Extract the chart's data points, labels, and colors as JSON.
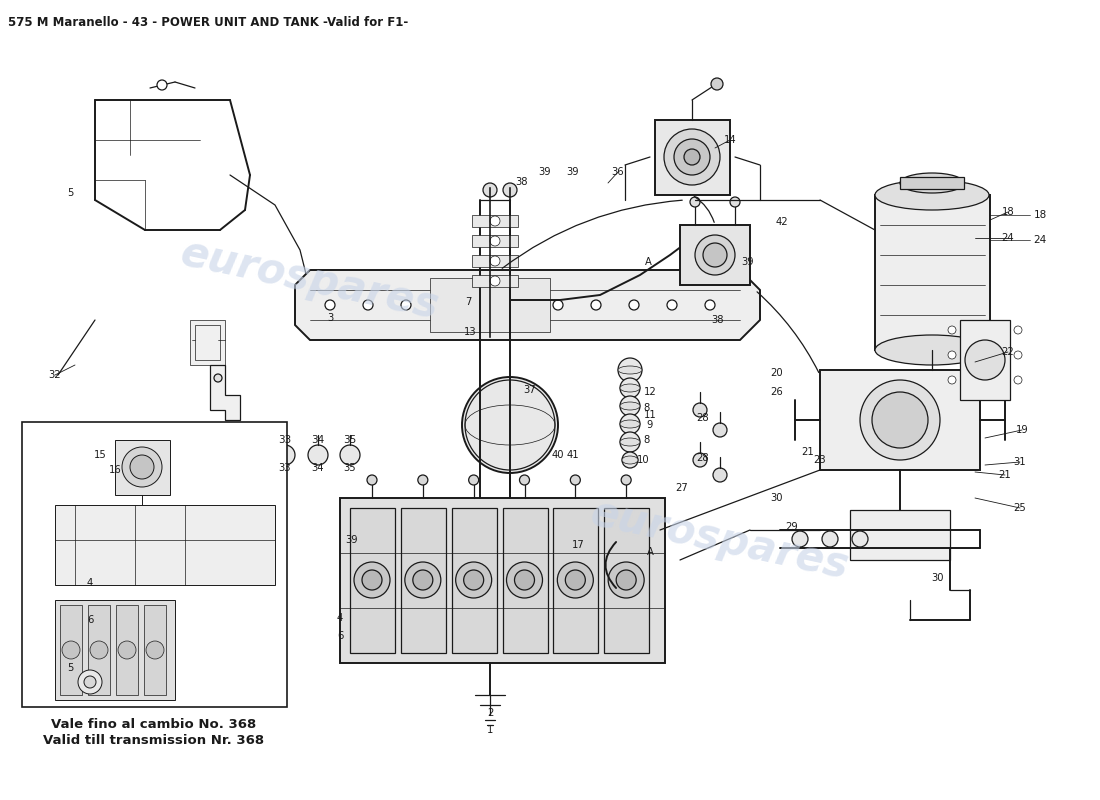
{
  "title": "575 M Maranello - 43 - POWER UNIT AND TANK -Valid for F1-",
  "title_fontsize": 8.5,
  "bg_color": "#ffffff",
  "diagram_color": "#1a1a1a",
  "watermark_color": "#c8d4e8",
  "note_line1": "Vale fino al cambio No. 368",
  "note_line2": "Valid till transmission Nr. 368",
  "note_fontsize": 9.5,
  "lw": 0.9,
  "lw_thick": 1.4,
  "lw_thin": 0.5
}
